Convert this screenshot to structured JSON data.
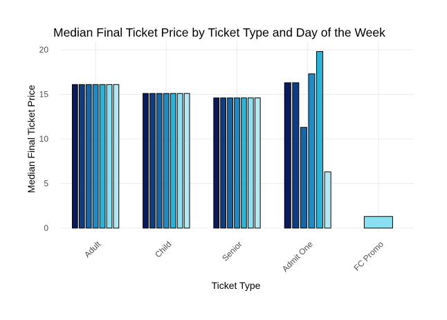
{
  "chart_data": {
    "type": "bar",
    "title": "Median Final Ticket Price by Ticket Type and Day of the Week",
    "x_label": "Ticket Type",
    "y_label": "Median Final Ticket Price",
    "categories": [
      "Adult",
      "Child",
      "Senior",
      "Admit One",
      "FC Promo"
    ],
    "series": [
      {
        "color": "#0b1a5c",
        "values": [
          16.1,
          15.1,
          14.6,
          16.3,
          null
        ]
      },
      {
        "color": "#0f3d82",
        "values": [
          16.1,
          15.1,
          14.6,
          16.3,
          null
        ]
      },
      {
        "color": "#1666a8",
        "values": [
          16.1,
          15.1,
          14.6,
          11.3,
          null
        ]
      },
      {
        "color": "#1f8ac3",
        "values": [
          16.1,
          15.1,
          14.6,
          17.3,
          null
        ]
      },
      {
        "color": "#2ab3d9",
        "values": [
          16.1,
          15.1,
          14.6,
          19.8,
          null
        ]
      },
      {
        "color": "#8adff0",
        "values": [
          16.1,
          15.1,
          14.6,
          null,
          1.3
        ]
      },
      {
        "color": "#b3e8f3",
        "values": [
          16.1,
          15.1,
          14.6,
          6.3,
          null
        ]
      }
    ],
    "ylim": [
      0,
      20
    ],
    "yticks": [
      0,
      5,
      10,
      15,
      20
    ],
    "grid": true
  }
}
